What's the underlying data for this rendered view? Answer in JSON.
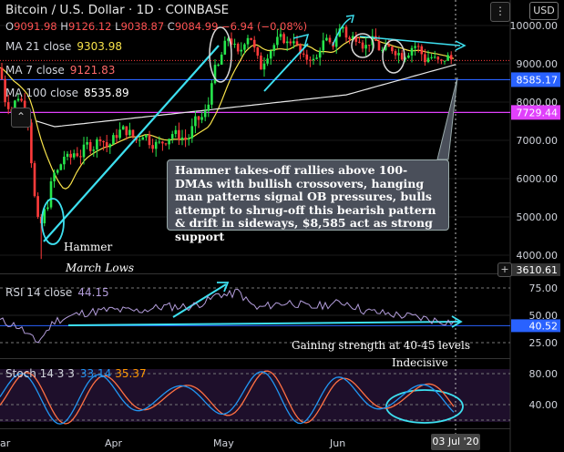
{
  "header": {
    "title": "Bitcoin / U.S. Dollar · 1D · COINBASE",
    "ohlc": [
      {
        "k": "O",
        "v": "9091.98"
      },
      {
        "k": "H",
        "v": "9126.12"
      },
      {
        "k": "L",
        "v": "9038.87"
      },
      {
        "k": "C",
        "v": "9084.99"
      },
      {
        "k": "",
        "v": "−6.94 (−0.08%)"
      }
    ],
    "ma21": {
      "label": "MA 21 close",
      "value": "9303.98"
    },
    "ma7": {
      "label": "MA 7 close",
      "value": "9121.83"
    },
    "ma100": {
      "label": "MA 100 close",
      "value": "8535.89"
    }
  },
  "controls": {
    "currency": "USD",
    "more_label": "⋮",
    "collapse_label": "⌃",
    "plus_label": "+"
  },
  "colors": {
    "up": "#26e64c",
    "down": "#ff3b3b",
    "ma21": "#f7e24a",
    "ma100": "#e8e8e8",
    "cyan": "#3de0f0",
    "rsi": "#b39ddb",
    "stoch_k": "#2196f3",
    "stoch_d": "#ff7043",
    "level_blue": "#2962ff",
    "level_magenta": "#e040fb"
  },
  "annotation": {
    "note": "Hammer takes-off rallies above 100-DMAs with bullish crossovers, hanging man patterns signal OB pressures, bulls attempt to shrug-off this bearish pattern & drift in sideways, $8,585 act as strong support",
    "hammer": "Hammer",
    "march_lows": "March Lows",
    "gaining": "Gaining strength at 40-45 levels",
    "indecisive": "Indecisive"
  },
  "chart_data": [
    {
      "type": "candlestick",
      "title": "Bitcoin / U.S. Dollar · 1D · COINBASE",
      "y_ticks": [
        "10000.00",
        "9000.00",
        "8000.00",
        "7000.00",
        "6000.00",
        "5000.00",
        "4000.00"
      ],
      "y_tick_values": [
        10000,
        9000,
        8000,
        7000,
        6000,
        5000,
        4000
      ],
      "ylim": [
        3900,
        10400
      ],
      "x_ticks": [
        "Apr",
        "May",
        "Jun"
      ],
      "levels": [
        {
          "label": "8585.17",
          "value": 8585.17,
          "color": "#2962ff"
        },
        {
          "label": "7729.44",
          "value": 7729.44,
          "color": "#e040fb"
        }
      ],
      "current_label": "9085.00",
      "crosshair_label": "3610.61",
      "date_label": "03 Jul '20"
    },
    {
      "type": "line",
      "title": "RSI 14 close",
      "value_label": "44.15",
      "y_ticks": [
        "75.00",
        "50.00",
        "25.00"
      ],
      "y_tick_values": [
        75,
        50,
        25
      ],
      "ylim": [
        10,
        90
      ],
      "current_label": "40.52"
    },
    {
      "type": "line",
      "title": "Stoch 14 3 3",
      "k_label": "33.14",
      "d_label": "35.37",
      "y_ticks": [
        "80.00",
        "40.00"
      ],
      "y_tick_values": [
        80,
        40
      ],
      "ylim": [
        0,
        100
      ]
    }
  ],
  "x_labels": {
    "left_edge": "ar",
    "apr": "Apr",
    "may": "May",
    "jun": "Jun"
  }
}
